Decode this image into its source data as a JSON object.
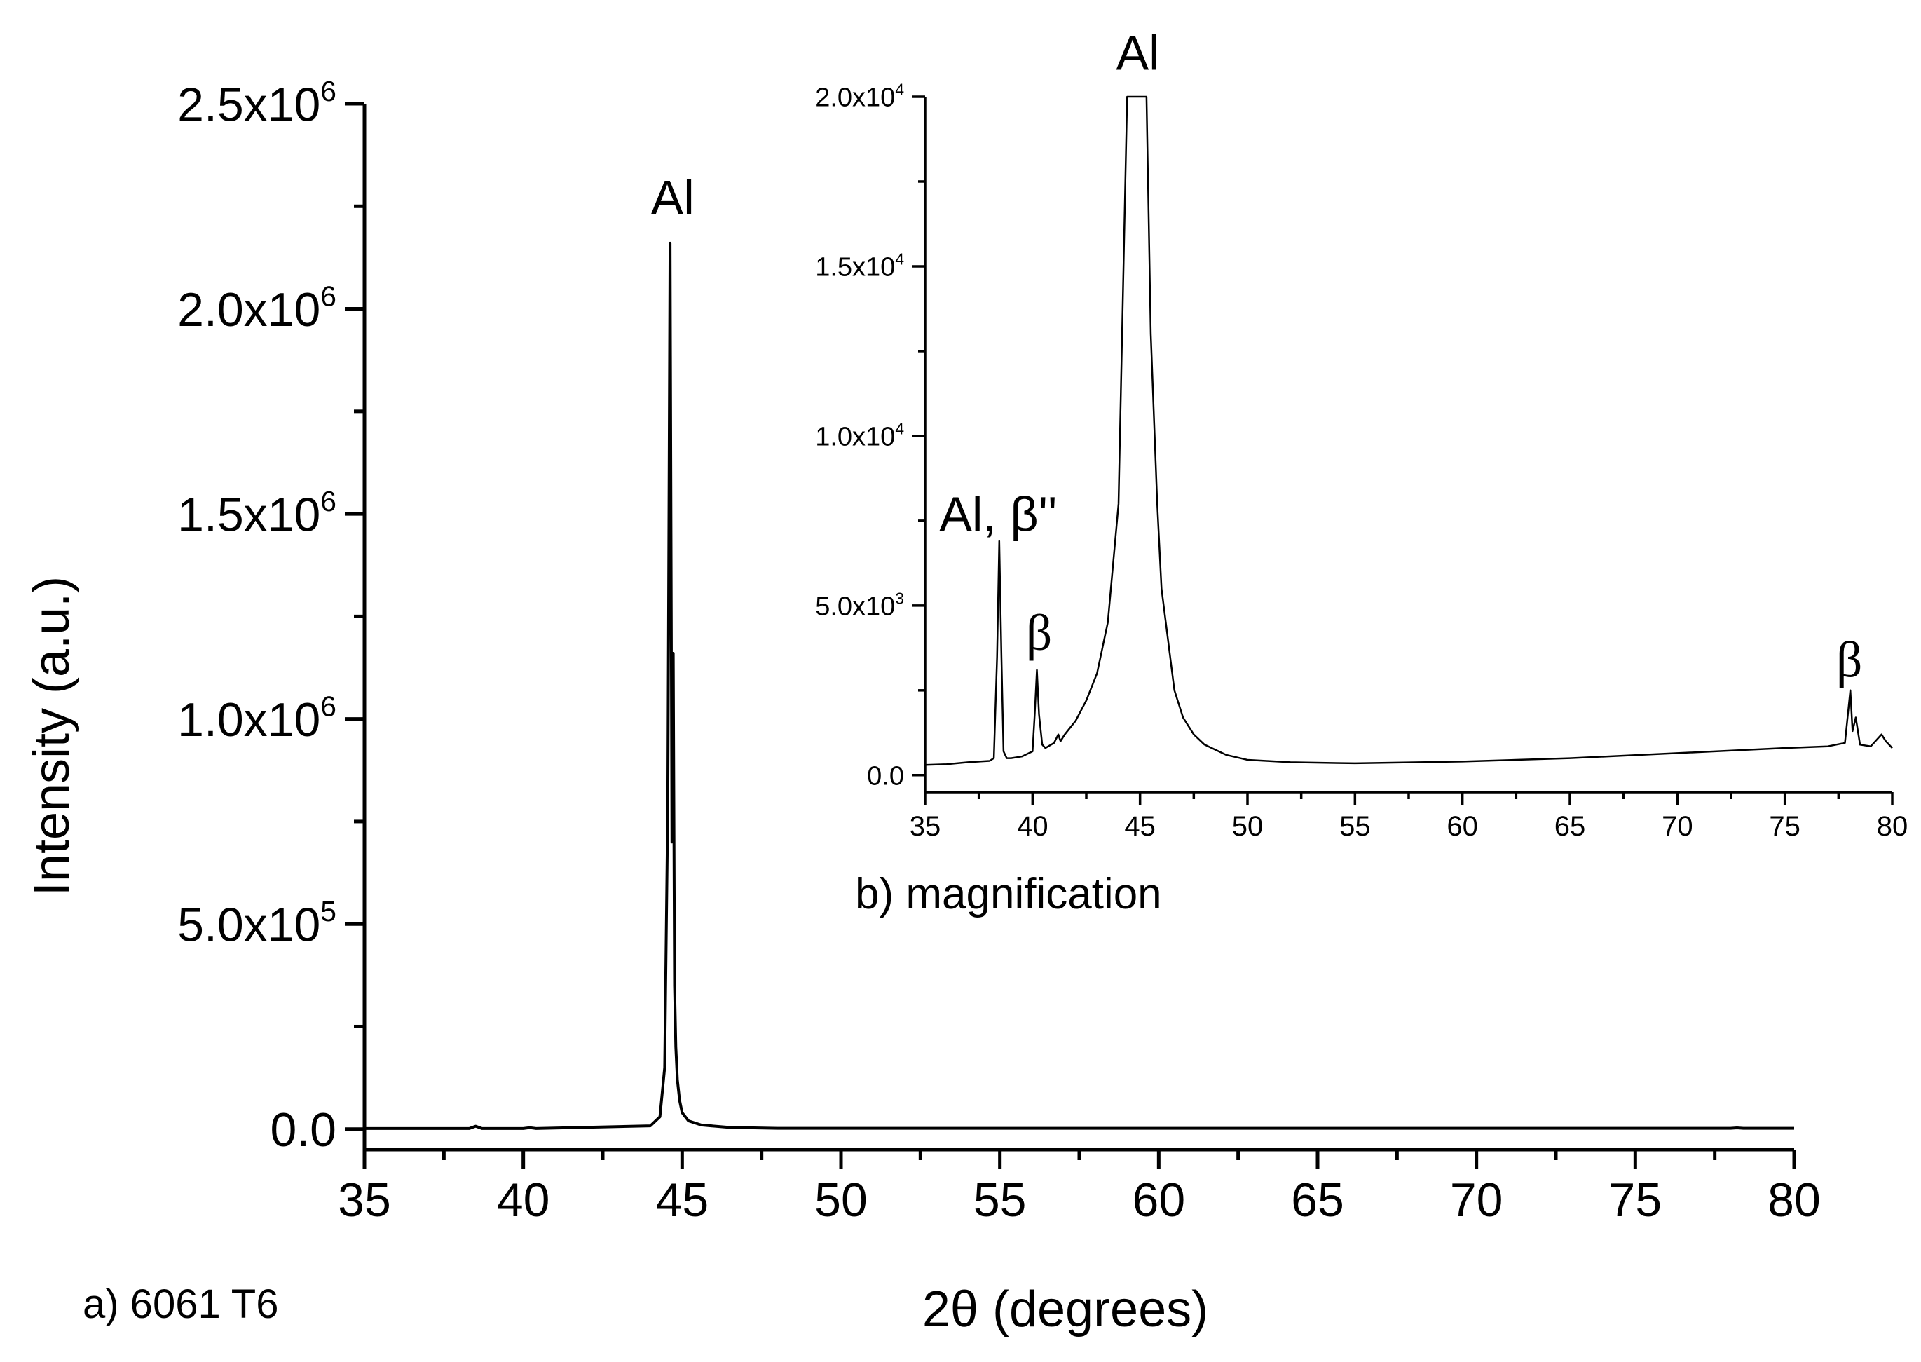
{
  "chart_data": [
    {
      "id": "main",
      "type": "line",
      "panel_label": "a) 6061 T6",
      "xlabel": "2θ (degrees)",
      "ylabel": "Intensity (a.u.)",
      "xlim": [
        35,
        80
      ],
      "ylim": [
        -50000,
        2500000
      ],
      "x_ticks": [
        35,
        40,
        45,
        50,
        55,
        60,
        65,
        70,
        75,
        80
      ],
      "y_ticks": [
        {
          "value": 0,
          "mantissa": "0.0",
          "exp": ""
        },
        {
          "value": 500000,
          "mantissa": "5.0x10",
          "exp": "5"
        },
        {
          "value": 1000000,
          "mantissa": "1.0x10",
          "exp": "6"
        },
        {
          "value": 1500000,
          "mantissa": "1.5x10",
          "exp": "6"
        },
        {
          "value": 2000000,
          "mantissa": "2.0x10",
          "exp": "6"
        },
        {
          "value": 2500000,
          "mantissa": "2.5x10",
          "exp": "6"
        }
      ],
      "annotations": [
        {
          "text": "Al",
          "x": 44.7,
          "y": 2230000
        }
      ],
      "series": [
        {
          "name": "6061 T6",
          "x": [
            35,
            38.3,
            38.5,
            38.7,
            40.0,
            40.2,
            40.4,
            44.0,
            44.3,
            44.45,
            44.55,
            44.62,
            44.68,
            44.72,
            44.76,
            44.8,
            44.85,
            44.92,
            45.0,
            45.2,
            45.6,
            46.5,
            48,
            78.0,
            78.2,
            78.4,
            80
          ],
          "y": [
            1500,
            1500,
            7000,
            1500,
            1500,
            3500,
            1500,
            8000,
            30000,
            150000,
            800000,
            2160000,
            700000,
            1160000,
            350000,
            200000,
            120000,
            70000,
            40000,
            20000,
            10000,
            4000,
            2000,
            2000,
            3000,
            2000,
            2000
          ]
        }
      ]
    },
    {
      "id": "inset",
      "type": "line",
      "panel_label": "b) magnification",
      "xlim": [
        35,
        80
      ],
      "ylim": [
        -500,
        20000
      ],
      "x_ticks": [
        35,
        40,
        45,
        50,
        55,
        60,
        65,
        70,
        75,
        80
      ],
      "y_ticks": [
        {
          "value": 0,
          "mantissa": "0.0",
          "exp": ""
        },
        {
          "value": 5000,
          "mantissa": "5.0x10",
          "exp": "3"
        },
        {
          "value": 10000,
          "mantissa": "1.0x10",
          "exp": "4"
        },
        {
          "value": 15000,
          "mantissa": "1.5x10",
          "exp": "4"
        },
        {
          "value": 20000,
          "mantissa": "2.0x10",
          "exp": "4"
        }
      ],
      "annotations": [
        {
          "text": "Al",
          "x": 44.9,
          "y": 20800
        },
        {
          "text": "Al, β''",
          "x": 38.4,
          "y": 7200
        },
        {
          "text": "β",
          "x": 40.3,
          "y": 3700
        },
        {
          "text": "β",
          "x": 78.0,
          "y": 2900
        }
      ],
      "series": [
        {
          "name": "magnification",
          "x": [
            35,
            36,
            37,
            38,
            38.2,
            38.35,
            38.45,
            38.55,
            38.65,
            38.8,
            39.0,
            39.5,
            40.0,
            40.1,
            40.2,
            40.3,
            40.45,
            40.6,
            41.0,
            41.2,
            41.3,
            41.5,
            42,
            42.5,
            43,
            43.5,
            44.0,
            44.2,
            44.4,
            45.3,
            45.5,
            45.8,
            46.0,
            46.3,
            46.6,
            47,
            47.5,
            48,
            49,
            50,
            52,
            55,
            60,
            65,
            70,
            75,
            77,
            77.8,
            78.05,
            78.15,
            78.3,
            78.5,
            79,
            79.5,
            79.7,
            80
          ],
          "y": [
            300,
            320,
            380,
            420,
            500,
            3500,
            6900,
            3500,
            700,
            500,
            500,
            550,
            700,
            1800,
            3100,
            1800,
            900,
            800,
            950,
            1200,
            1000,
            1200,
            1600,
            2200,
            3000,
            4500,
            8000,
            14000,
            20000,
            20000,
            13000,
            8000,
            5500,
            4000,
            2500,
            1700,
            1200,
            900,
            600,
            450,
            380,
            350,
            400,
            500,
            650,
            800,
            850,
            950,
            2500,
            1300,
            1700,
            900,
            850,
            1200,
            1000,
            800
          ]
        }
      ]
    }
  ]
}
